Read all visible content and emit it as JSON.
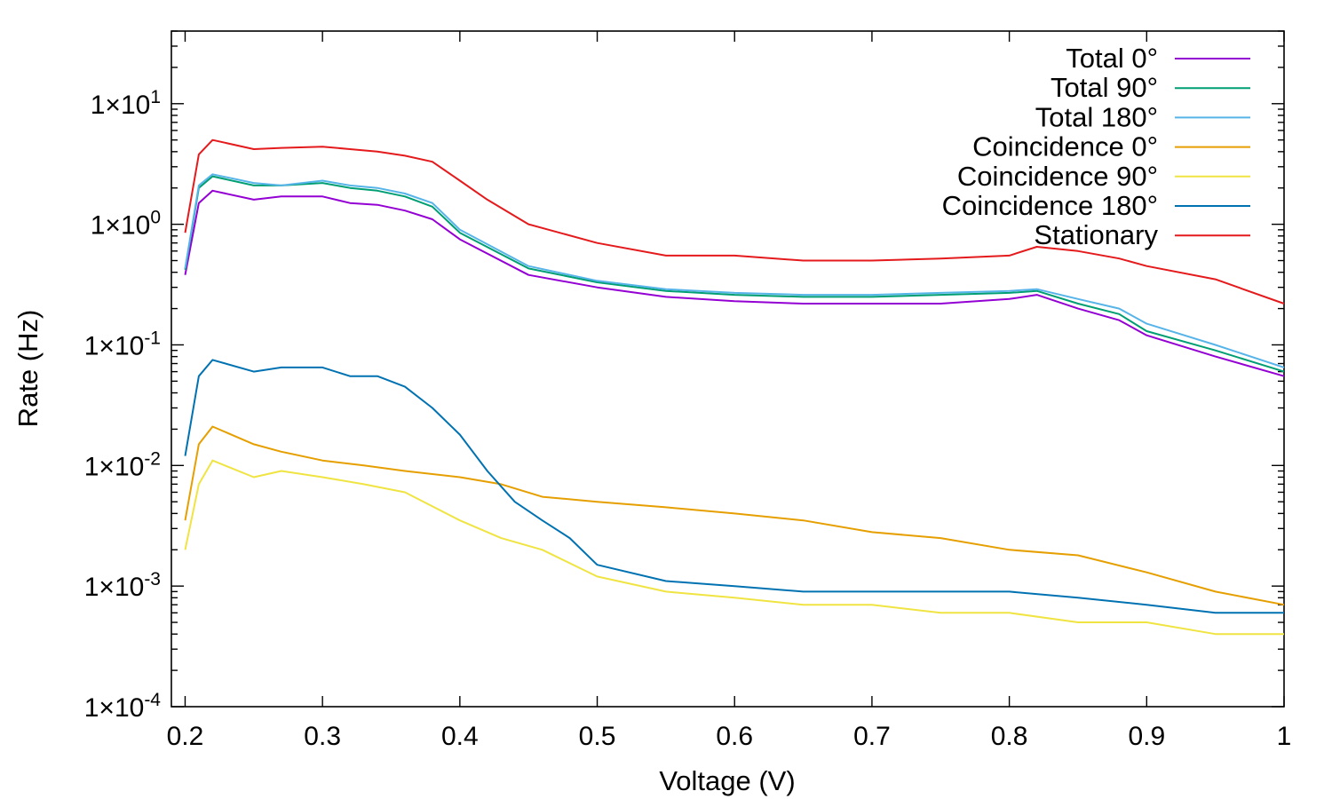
{
  "chart_data": {
    "type": "line",
    "title": "",
    "xlabel": "Voltage (V)",
    "ylabel": "Rate (Hz)",
    "xlim": [
      0.19,
      1.0
    ],
    "ylim": [
      0.0001,
      40
    ],
    "yscale": "log",
    "grid": false,
    "legend_placement": "top-right",
    "x_ticks": [
      0.2,
      0.3,
      0.4,
      0.5,
      0.6,
      0.7,
      0.8,
      0.9,
      1.0
    ],
    "x_tick_labels": [
      "0.2",
      "0.3",
      "0.4",
      "0.5",
      "0.6",
      "0.7",
      "0.8",
      "0.9",
      "1"
    ],
    "y_ticks": [
      10,
      1,
      0.1,
      0.01,
      0.001,
      0.0001
    ],
    "y_tick_labels": [
      {
        "base": "1×10",
        "exp": "1"
      },
      {
        "base": "1×10",
        "exp": "0"
      },
      {
        "base": "1×10",
        "exp": "-1"
      },
      {
        "base": "1×10",
        "exp": "-2"
      },
      {
        "base": "1×10",
        "exp": "-3"
      },
      {
        "base": "1×10",
        "exp": "-4"
      }
    ],
    "series": [
      {
        "name": "Total 0°",
        "color": "#9400d3",
        "x": [
          0.2,
          0.21,
          0.22,
          0.25,
          0.27,
          0.3,
          0.32,
          0.34,
          0.36,
          0.38,
          0.4,
          0.45,
          0.5,
          0.55,
          0.6,
          0.65,
          0.7,
          0.75,
          0.8,
          0.82,
          0.85,
          0.88,
          0.9,
          0.95,
          1.0
        ],
        "y": [
          0.38,
          1.5,
          1.9,
          1.6,
          1.7,
          1.7,
          1.5,
          1.45,
          1.3,
          1.1,
          0.75,
          0.38,
          0.3,
          0.25,
          0.23,
          0.22,
          0.22,
          0.22,
          0.24,
          0.26,
          0.2,
          0.16,
          0.12,
          0.08,
          0.055
        ]
      },
      {
        "name": "Total 90°",
        "color": "#009e73",
        "x": [
          0.2,
          0.21,
          0.22,
          0.25,
          0.27,
          0.3,
          0.32,
          0.34,
          0.36,
          0.38,
          0.4,
          0.45,
          0.5,
          0.55,
          0.6,
          0.65,
          0.7,
          0.75,
          0.8,
          0.82,
          0.85,
          0.88,
          0.9,
          0.95,
          1.0
        ],
        "y": [
          0.42,
          2.0,
          2.5,
          2.1,
          2.1,
          2.2,
          2.0,
          1.9,
          1.7,
          1.4,
          0.85,
          0.43,
          0.33,
          0.28,
          0.26,
          0.25,
          0.25,
          0.26,
          0.27,
          0.28,
          0.22,
          0.18,
          0.13,
          0.09,
          0.06
        ]
      },
      {
        "name": "Total 180°",
        "color": "#56b4e9",
        "x": [
          0.2,
          0.21,
          0.22,
          0.25,
          0.27,
          0.3,
          0.32,
          0.34,
          0.36,
          0.38,
          0.4,
          0.45,
          0.5,
          0.55,
          0.6,
          0.65,
          0.7,
          0.75,
          0.8,
          0.82,
          0.85,
          0.88,
          0.9,
          0.95,
          1.0
        ],
        "y": [
          0.43,
          2.1,
          2.6,
          2.2,
          2.1,
          2.3,
          2.1,
          2.0,
          1.8,
          1.5,
          0.9,
          0.45,
          0.34,
          0.29,
          0.27,
          0.26,
          0.26,
          0.27,
          0.28,
          0.29,
          0.24,
          0.2,
          0.15,
          0.1,
          0.065
        ]
      },
      {
        "name": "Coincidence 0°",
        "color": "#e69f00",
        "x": [
          0.2,
          0.21,
          0.22,
          0.25,
          0.27,
          0.3,
          0.33,
          0.36,
          0.4,
          0.43,
          0.46,
          0.5,
          0.55,
          0.6,
          0.65,
          0.7,
          0.75,
          0.8,
          0.85,
          0.9,
          0.95,
          1.0
        ],
        "y": [
          0.0035,
          0.015,
          0.021,
          0.015,
          0.013,
          0.011,
          0.01,
          0.009,
          0.008,
          0.007,
          0.0055,
          0.005,
          0.0045,
          0.004,
          0.0035,
          0.0028,
          0.0025,
          0.002,
          0.0018,
          0.0013,
          0.0009,
          0.0007
        ]
      },
      {
        "name": "Coincidence 90°",
        "color": "#f0e442",
        "x": [
          0.2,
          0.21,
          0.22,
          0.25,
          0.27,
          0.3,
          0.33,
          0.36,
          0.4,
          0.43,
          0.46,
          0.5,
          0.55,
          0.6,
          0.65,
          0.7,
          0.75,
          0.8,
          0.85,
          0.9,
          0.95,
          1.0
        ],
        "y": [
          0.002,
          0.007,
          0.011,
          0.008,
          0.009,
          0.008,
          0.007,
          0.006,
          0.0035,
          0.0025,
          0.002,
          0.0012,
          0.0009,
          0.0008,
          0.0007,
          0.0007,
          0.0006,
          0.0006,
          0.0005,
          0.0005,
          0.0004,
          0.0004
        ]
      },
      {
        "name": "Coincidence 180°",
        "color": "#0072b2",
        "x": [
          0.2,
          0.21,
          0.22,
          0.25,
          0.27,
          0.3,
          0.32,
          0.34,
          0.36,
          0.38,
          0.4,
          0.42,
          0.44,
          0.46,
          0.48,
          0.5,
          0.55,
          0.6,
          0.65,
          0.7,
          0.75,
          0.8,
          0.85,
          0.9,
          0.95,
          1.0
        ],
        "y": [
          0.012,
          0.055,
          0.075,
          0.06,
          0.065,
          0.065,
          0.055,
          0.055,
          0.045,
          0.03,
          0.018,
          0.009,
          0.005,
          0.0035,
          0.0025,
          0.0015,
          0.0011,
          0.001,
          0.0009,
          0.0009,
          0.0009,
          0.0009,
          0.0008,
          0.0007,
          0.0006,
          0.0006
        ]
      },
      {
        "name": "Stationary",
        "color": "#e41a1c",
        "x": [
          0.2,
          0.21,
          0.22,
          0.25,
          0.27,
          0.3,
          0.32,
          0.34,
          0.36,
          0.38,
          0.4,
          0.42,
          0.45,
          0.5,
          0.55,
          0.6,
          0.65,
          0.7,
          0.75,
          0.8,
          0.82,
          0.85,
          0.88,
          0.9,
          0.95,
          1.0
        ],
        "y": [
          0.85,
          3.8,
          5.0,
          4.2,
          4.3,
          4.4,
          4.2,
          4.0,
          3.7,
          3.3,
          2.3,
          1.6,
          1.0,
          0.7,
          0.55,
          0.55,
          0.5,
          0.5,
          0.52,
          0.55,
          0.65,
          0.6,
          0.52,
          0.45,
          0.35,
          0.22
        ]
      }
    ]
  }
}
